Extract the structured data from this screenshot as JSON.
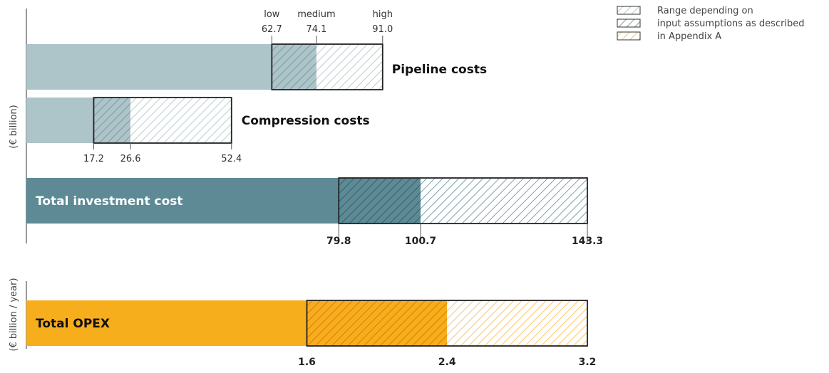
{
  "colors": {
    "pipeline": "#adc4c9",
    "compression": "#adc4c9",
    "total": "#5d8a95",
    "opex": "#f7ae1d",
    "axis": "#555555",
    "teal_hatch": "#6e9ba4",
    "orange_hatch": "#f0a020"
  },
  "legend": {
    "lines": [
      "Range depending on",
      "input assumptions as described",
      "in Appendix A"
    ]
  },
  "chart_data": [
    {
      "type": "bar",
      "ylabel": "(€ billion)",
      "scale_labels": [
        "low",
        "medium",
        "high"
      ],
      "bars": [
        {
          "label": "Pipeline costs",
          "low": 62.7,
          "medium": 74.1,
          "high": 91.0,
          "low_text": "62.7",
          "medium_text": "74.1",
          "high_text": "91.0"
        },
        {
          "label": "Compression costs",
          "low": 17.2,
          "medium": 26.6,
          "high": 52.4,
          "low_text": "17.2",
          "medium_text": "26.6",
          "high_text": "52.4"
        },
        {
          "label": "Total investment cost",
          "low": 79.8,
          "medium": 100.7,
          "high": 143.3,
          "low_text": "79.8",
          "medium_text": "100.7",
          "high_text": "143.3"
        }
      ]
    },
    {
      "type": "bar",
      "ylabel": "(€ billion / year)",
      "bars": [
        {
          "label": "Total OPEX",
          "low": 1.6,
          "medium": 2.4,
          "high": 3.2,
          "low_text": "1.6",
          "medium_text": "2.4",
          "high_text": "3.2"
        }
      ]
    }
  ]
}
